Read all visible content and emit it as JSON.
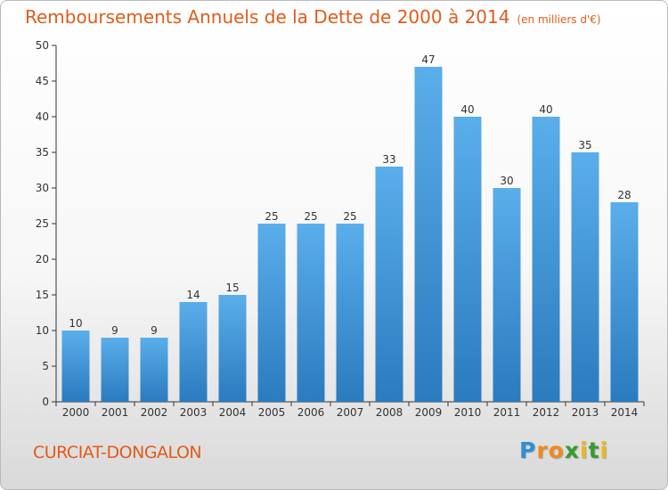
{
  "title": "Remboursements Annuels de la Dette de 2000 à 2014",
  "unit": "(en milliers d'€)",
  "commune": "CURCIAT-DONGALON",
  "logo": "Proxiti",
  "colors": {
    "accent": "#e05c1a",
    "bar_light": "#5aaeea",
    "bar_dark": "#2a7bbf",
    "axis": "#333333",
    "grid": "#cccccc"
  },
  "chart_data": {
    "type": "bar",
    "title": "Remboursements Annuels de la Dette de 2000 à 2014",
    "subtitle": "(en milliers d'€)",
    "xlabel": "",
    "ylabel": "",
    "categories": [
      "2000",
      "2001",
      "2002",
      "2003",
      "2004",
      "2005",
      "2006",
      "2007",
      "2008",
      "2009",
      "2010",
      "2011",
      "2012",
      "2013",
      "2014"
    ],
    "values": [
      10,
      9,
      9,
      14,
      15,
      25,
      25,
      25,
      33,
      47,
      40,
      30,
      40,
      35,
      28
    ],
    "ylim": [
      0,
      50
    ],
    "yticks": [
      0,
      5,
      10,
      15,
      20,
      25,
      30,
      35,
      40,
      45,
      50
    ],
    "grid": false,
    "data_labels": true
  }
}
